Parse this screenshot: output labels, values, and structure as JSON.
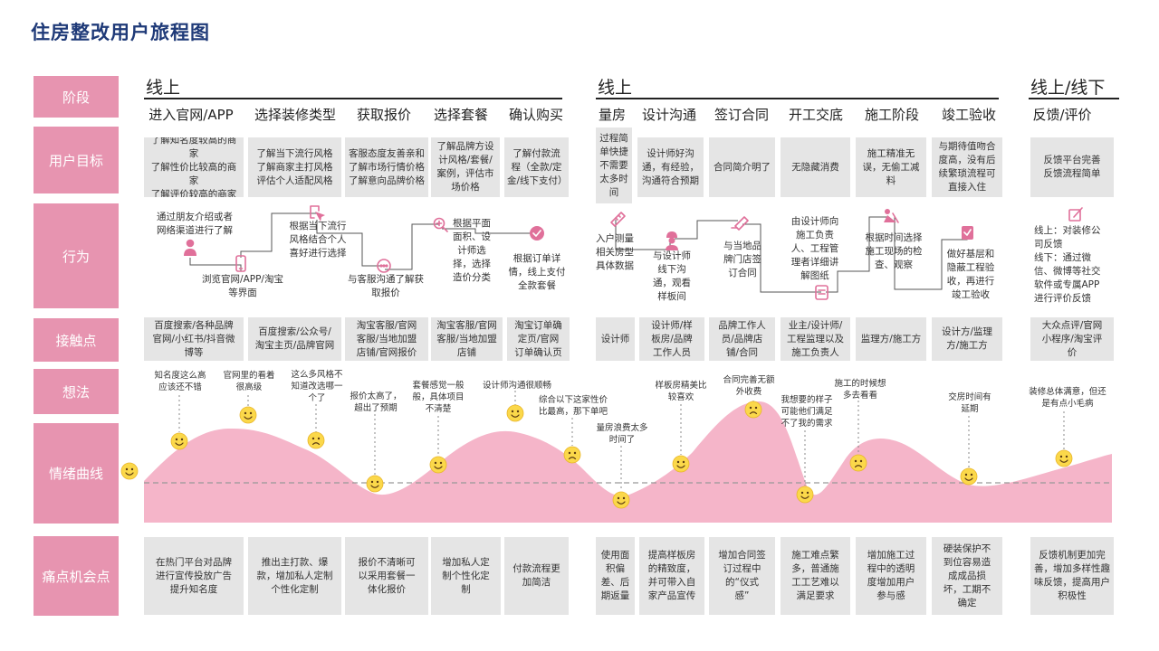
{
  "title": "住房整改用户旅程图",
  "row_labels": [
    "阶段",
    "用户目标",
    "行为",
    "接触点",
    "想法",
    "情绪曲线",
    "痛点机会点"
  ],
  "sections": [
    "线上",
    "线上",
    "线上/线下"
  ],
  "stages": [
    "进入官网/APP",
    "选择装修类型",
    "获取报价",
    "选择套餐",
    "确认购买",
    "量房",
    "设计沟通",
    "签订合同",
    "开工交底",
    "施工阶段",
    "竣工验收",
    "反馈/评价"
  ],
  "goals": [
    "了解知名度较高的商家\n了解性价比较高的商家\n了解评价较高的商家",
    "了解当下流行风格\n了解商家主打风格\n评估个人适配风格",
    "客服态度友善亲和\n了解市场行情价格\n了解意向品牌价格",
    "了解品牌方设\n计风格/套餐/\n案例，评估市\n场价格",
    "了解付款流\n程（全款/定\n金/线下支付）",
    "过程简\n单快捷\n不需要\n太多时\n间",
    "设计师好沟\n通，有经验，\n沟通符合预期",
    "合同简介明了",
    "无隐藏消费",
    "施工精准无\n误，无偷工减\n料",
    "与期待值吻合\n度高，没有后\n续繁琐流程可\n直接入住",
    "反馈平台完善\n反馈流程简单"
  ],
  "behaviors": [
    "通过朋友介绍或者\n网络渠道进行了解",
    "浏览官网/APP/淘宝\n等界面",
    "根据当下流行\n风格结合个人\n喜好进行选择",
    "与客服沟通了解获\n取报价",
    "根据平面\n面积、设\n计师选\n择，选择\n造价分类",
    "根据订单详\n情，线上支付\n全款套餐",
    "入户测量\n相关房型\n具体数据",
    "与设计师\n线下沟\n通，观看\n样板间",
    "与当地品\n牌门店签\n订合同",
    "由设计师向\n施工负责\n人、工程管\n理者详细讲\n解图纸",
    "根据时间选择\n施工现场的检\n查、观察",
    "做好基层和\n隐蔽工程验\n收，再进行\n竣工验收",
    "线上：对装修公\n司反馈\n线下：通过微\n信、微博等社交\n软件或专属APP\n进行评价反馈"
  ],
  "touchpoints": [
    "百度搜索/各种品牌\n官网/小红书/抖音微\n博等",
    "百度搜索/公众号/\n淘宝主页/品牌官网",
    "淘宝客服/官网\n客服/当地加盟\n店铺/官网报价",
    "淘宝客服/官网\n客服/当地加盟\n店铺",
    "淘宝订单确\n定页/官网\n订单确认页",
    "设计师",
    "设计师/样\n板房/品牌\n工作人员",
    "品牌工作人\n员/品牌店\n铺/合同",
    "业主/设计师/\n工程监理以及\n施工负责人",
    "监理方/施工方",
    "设计方/监理\n方/施工方",
    "大众点评/官网\n小程序/淘宝评\n价"
  ],
  "thoughts": [
    "知名度这么高\n应该还不错",
    "官网里的看着\n很高级",
    "这么多风格不\n知道改选哪一\n个了",
    "报价太高了，\n超出了预期",
    "套餐感觉一般\n般，具体项目\n不清楚",
    "设计师沟通很顺畅",
    "综合以下这家性价\n比最高，那下单吧",
    "量房浪费太多\n时间了",
    "样板房精美比\n较喜欢",
    "合同完善无额\n外收费",
    "我想要的样子\n可能他们满足\n不了我的需求",
    "施工的时候想\n多去看看",
    "交房时间有\n延期",
    "装修总体满意，但还\n是有点小毛病"
  ],
  "emotions": [
    "happy",
    "happy",
    "happy",
    "sad",
    "happy",
    "happy",
    "happy",
    "sad",
    "happy",
    "happy",
    "sad",
    "happy",
    "sad",
    "happy",
    "happy"
  ],
  "pains": [
    "在热门平台对品牌\n进行宣传投放广告\n提升知名度",
    "推出主打款、爆\n款，增加私人定制\n个性化定制",
    "报价不清晰可\n以采用套餐一\n体化报价",
    "增加私人定\n制个性化定\n制",
    "付款流程更\n加简洁",
    "使用面\n积偏\n差、后\n期返量",
    "提高样板房\n的精致度，\n并可带入自\n家产品宣传",
    "增加合同签\n订过程中\n的“仪式\n感”",
    "施工难点繁\n多，普通施\n工工艺难以\n满足要求",
    "增加施工过\n程中的透明\n度增加用户\n参与感",
    "硬装保护不\n到位容易造\n成成品损\n坏，工期不\n确定",
    "反馈机制更加完\n善，增加多样性趣\n味反馈，提高用户\n积极性"
  ],
  "icons": [
    "person-icon",
    "phone-icon",
    "cursor-icon",
    "chat-icon",
    "search-plus-icon",
    "check-circle-icon",
    "ruler-icon",
    "worker-icon",
    "pen-icon",
    "document-icon",
    "construction-icon",
    "checklist-icon",
    "edit-icon"
  ],
  "colors": {
    "accent": "#e794b0",
    "curve_fill": "#f5b5c9",
    "title": "#1f3a78",
    "box": "#e5e5e5",
    "emoji": "#fbd84a",
    "icon": "#e0709a"
  }
}
